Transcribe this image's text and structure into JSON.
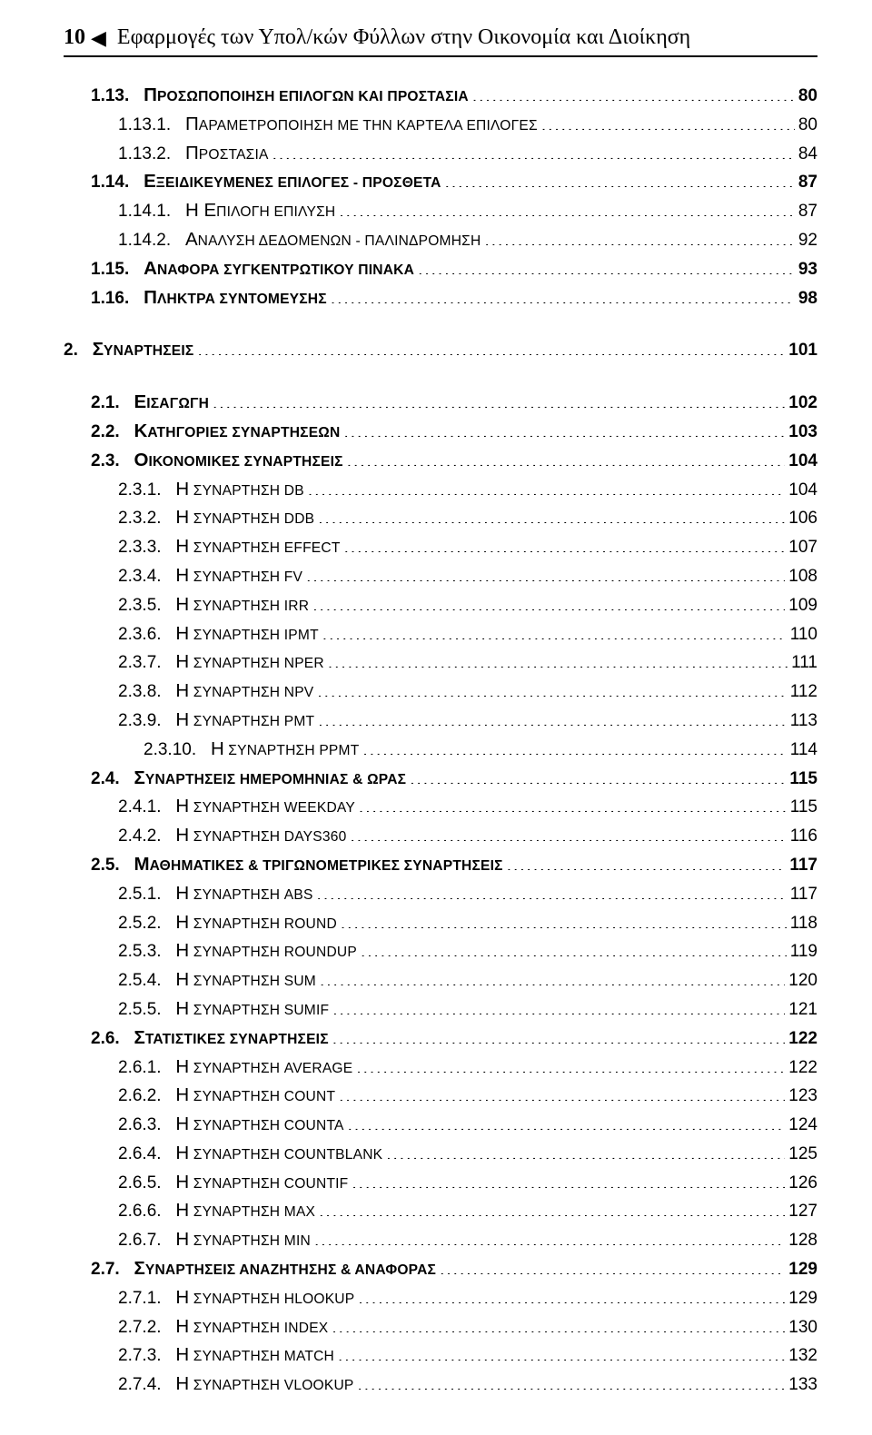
{
  "header": {
    "page_number": "10",
    "triangle": "◀",
    "title": "Εφαρμογές των Υπολ/κών Φύλλων στην Οικονομία και Διοίκηση"
  },
  "toc_font_size_pt": 14,
  "toc": [
    {
      "level": 1,
      "bold": true,
      "num": "1.13.",
      "sc": "Π",
      "rest": "ΡΟΣΩΠΟΠΟΙΗΣΗ ΕΠΙΛΟΓΩΝ ΚΑΙ ΠΡΟΣΤΑΣΙΑ",
      "page": "80"
    },
    {
      "level": 2,
      "bold": false,
      "num": "1.13.1.",
      "sc": "Π",
      "rest": "ΑΡΑΜΕΤΡΟΠΟΙΗΣΗ ΜΕ ΤΗΝ ΚΑΡΤΕΛΑ ΕΠΙΛΟΓΕΣ",
      "page": "80"
    },
    {
      "level": 2,
      "bold": false,
      "num": "1.13.2.",
      "sc": "Π",
      "rest": "ΡΟΣΤΑΣΙΑ",
      "page": "84"
    },
    {
      "level": 1,
      "bold": true,
      "num": "1.14.",
      "sc": "Ε",
      "rest": "ΞΕΙΔΙΚΕΥΜΕΝΕΣ ΕΠΙΛΟΓΕΣ - ΠΡΟΣΘΕΤΑ",
      "page": "87"
    },
    {
      "level": 2,
      "bold": false,
      "num": "1.14.1.",
      "sc": "Η Ε",
      "rest": "ΠΙΛΟΓΗ ΕΠΙΛΥΣΗ",
      "page": "87"
    },
    {
      "level": 2,
      "bold": false,
      "num": "1.14.2.",
      "sc": "Α",
      "rest": "ΝΑΛΥΣΗ ΔΕΔΟΜΕΝΩΝ - ΠΑΛΙΝΔΡΟΜΗΣΗ",
      "page": "92"
    },
    {
      "level": 1,
      "bold": true,
      "num": "1.15.",
      "sc": "Α",
      "rest": "ΝΑΦΟΡΑ ΣΥΓΚΕΝΤΡΩΤΙΚΟΥ ΠΙΝΑΚΑ",
      "page": "93"
    },
    {
      "level": 1,
      "bold": true,
      "num": "1.16.",
      "sc": "Π",
      "rest": "ΛΗΚΤΡΑ ΣΥΝΤΟΜΕΥΣΗΣ",
      "page": "98",
      "gap_after": true
    },
    {
      "level": 0,
      "bold": true,
      "num": "2.",
      "sc": "Σ",
      "rest": "ΥΝΑΡΤΗΣΕΙΣ",
      "page": "101",
      "gap_after": true
    },
    {
      "level": 1,
      "bold": true,
      "num": "2.1.",
      "sc": "Ε",
      "rest": "ΙΣΑΓΩΓΗ",
      "page": "102"
    },
    {
      "level": 1,
      "bold": true,
      "num": "2.2.",
      "sc": "Κ",
      "rest": "ΑΤΗΓΟΡΙΕΣ ΣΥΝΑΡΤΗΣΕΩΝ",
      "page": "103"
    },
    {
      "level": 1,
      "bold": true,
      "num": "2.3.",
      "sc": "Ο",
      "rest": "ΙΚΟΝΟΜΙΚΕΣ ΣΥΝΑΡΤΗΣΕΙΣ",
      "page": "104"
    },
    {
      "level": 2,
      "bold": false,
      "num": "2.3.1.",
      "sc": "Η",
      "rest": " ΣΥΝΑΡΤΗΣΗ DB",
      "page": "104"
    },
    {
      "level": 2,
      "bold": false,
      "num": "2.3.2.",
      "sc": "Η",
      "rest": " ΣΥΝΑΡΤΗΣΗ DDB",
      "page": "106"
    },
    {
      "level": 2,
      "bold": false,
      "num": "2.3.3.",
      "sc": "Η",
      "rest": " ΣΥΝΑΡΤΗΣΗ EFFECT",
      "page": "107"
    },
    {
      "level": 2,
      "bold": false,
      "num": "2.3.4.",
      "sc": "Η",
      "rest": " ΣΥΝΑΡΤΗΣΗ FV",
      "page": "108"
    },
    {
      "level": 2,
      "bold": false,
      "num": "2.3.5.",
      "sc": "Η",
      "rest": " ΣΥΝΑΡΤΗΣΗ IRR",
      "page": "109"
    },
    {
      "level": 2,
      "bold": false,
      "num": "2.3.6.",
      "sc": "Η",
      "rest": " ΣΥΝΑΡΤΗΣΗ IPMT",
      "page": "110"
    },
    {
      "level": 2,
      "bold": false,
      "num": "2.3.7.",
      "sc": "Η",
      "rest": " ΣΥΝΑΡΤΗΣΗ NPER",
      "page": "111"
    },
    {
      "level": 2,
      "bold": false,
      "num": "2.3.8.",
      "sc": "Η",
      "rest": " ΣΥΝΑΡΤΗΣΗ NPV",
      "page": "112"
    },
    {
      "level": 2,
      "bold": false,
      "num": "2.3.9.",
      "sc": "Η",
      "rest": " ΣΥΝΑΡΤΗΣΗ PMT",
      "page": "113"
    },
    {
      "level": 3,
      "bold": false,
      "num": "2.3.10.",
      "sc": "Η",
      "rest": " ΣΥΝΑΡΤΗΣΗ PPMT",
      "page": "114"
    },
    {
      "level": 1,
      "bold": true,
      "num": "2.4.",
      "sc": "Σ",
      "rest": "ΥΝΑΡΤΗΣΕΙΣ ΗΜΕΡΟΜΗΝΙΑΣ & ΩΡΑΣ",
      "page": "115"
    },
    {
      "level": 2,
      "bold": false,
      "num": "2.4.1.",
      "sc": "Η",
      "rest": " ΣΥΝΑΡΤΗΣΗ WEEKDAY",
      "page": "115"
    },
    {
      "level": 2,
      "bold": false,
      "num": "2.4.2.",
      "sc": "Η",
      "rest": " ΣΥΝΑΡΤΗΣΗ DAYS360",
      "page": "116"
    },
    {
      "level": 1,
      "bold": true,
      "num": "2.5.",
      "sc": "Μ",
      "rest": "ΑΘΗΜΑΤΙΚΕΣ & ΤΡΙΓΩΝΟΜΕΤΡΙΚΕΣ ΣΥΝΑΡΤΗΣΕΙΣ",
      "page": "117"
    },
    {
      "level": 2,
      "bold": false,
      "num": "2.5.1.",
      "sc": "Η",
      "rest": " ΣΥΝΑΡΤΗΣΗ ABS",
      "page": "117"
    },
    {
      "level": 2,
      "bold": false,
      "num": "2.5.2.",
      "sc": "Η",
      "rest": " ΣΥΝΑΡΤΗΣΗ ROUND",
      "page": "118"
    },
    {
      "level": 2,
      "bold": false,
      "num": "2.5.3.",
      "sc": "Η",
      "rest": " ΣΥΝΑΡΤΗΣΗ ROUNDUP",
      "page": "119"
    },
    {
      "level": 2,
      "bold": false,
      "num": "2.5.4.",
      "sc": "Η",
      "rest": " ΣΥΝΑΡΤΗΣΗ SUM",
      "page": "120"
    },
    {
      "level": 2,
      "bold": false,
      "num": "2.5.5.",
      "sc": "Η",
      "rest": " ΣΥΝΑΡΤΗΣΗ SUMIF",
      "page": "121"
    },
    {
      "level": 1,
      "bold": true,
      "num": "2.6.",
      "sc": "Σ",
      "rest": "ΤΑΤΙΣΤΙΚΕΣ ΣΥΝΑΡΤΗΣΕΙΣ",
      "page": "122"
    },
    {
      "level": 2,
      "bold": false,
      "num": "2.6.1.",
      "sc": "Η",
      "rest": " ΣΥΝΑΡΤΗΣΗ AVERAGE",
      "page": "122"
    },
    {
      "level": 2,
      "bold": false,
      "num": "2.6.2.",
      "sc": "Η",
      "rest": " ΣΥΝΑΡΤΗΣΗ COUNT",
      "page": "123"
    },
    {
      "level": 2,
      "bold": false,
      "num": "2.6.3.",
      "sc": "Η",
      "rest": " ΣΥΝΑΡΤΗΣΗ COUNTA",
      "page": "124"
    },
    {
      "level": 2,
      "bold": false,
      "num": "2.6.4.",
      "sc": "Η",
      "rest": " ΣΥΝΑΡΤΗΣΗ COUNTBLANK",
      "page": "125"
    },
    {
      "level": 2,
      "bold": false,
      "num": "2.6.5.",
      "sc": "Η",
      "rest": " ΣΥΝΑΡΤΗΣΗ COUNTIF",
      "page": "126"
    },
    {
      "level": 2,
      "bold": false,
      "num": "2.6.6.",
      "sc": "Η",
      "rest": " ΣΥΝΑΡΤΗΣΗ MAX",
      "page": "127"
    },
    {
      "level": 2,
      "bold": false,
      "num": "2.6.7.",
      "sc": "Η",
      "rest": " ΣΥΝΑΡΤΗΣΗ MIN",
      "page": "128"
    },
    {
      "level": 1,
      "bold": true,
      "num": "2.7.",
      "sc": "Σ",
      "rest": "ΥΝΑΡΤΗΣΕΙΣ ΑΝΑΖΗΤΗΣΗΣ & ΑΝΑΦΟΡΑΣ",
      "page": "129"
    },
    {
      "level": 2,
      "bold": false,
      "num": "2.7.1.",
      "sc": "Η",
      "rest": " ΣΥΝΑΡΤΗΣΗ HLOOKUP",
      "page": "129"
    },
    {
      "level": 2,
      "bold": false,
      "num": "2.7.2.",
      "sc": "Η",
      "rest": " ΣΥΝΑΡΤΗΣΗ INDEX",
      "page": "130"
    },
    {
      "level": 2,
      "bold": false,
      "num": "2.7.3.",
      "sc": "Η",
      "rest": " ΣΥΝΑΡΤΗΣΗ MATCH",
      "page": "132"
    },
    {
      "level": 2,
      "bold": false,
      "num": "2.7.4.",
      "sc": "Η",
      "rest": " ΣΥΝΑΡΤΗΣΗ VLOOKUP",
      "page": "133"
    }
  ]
}
